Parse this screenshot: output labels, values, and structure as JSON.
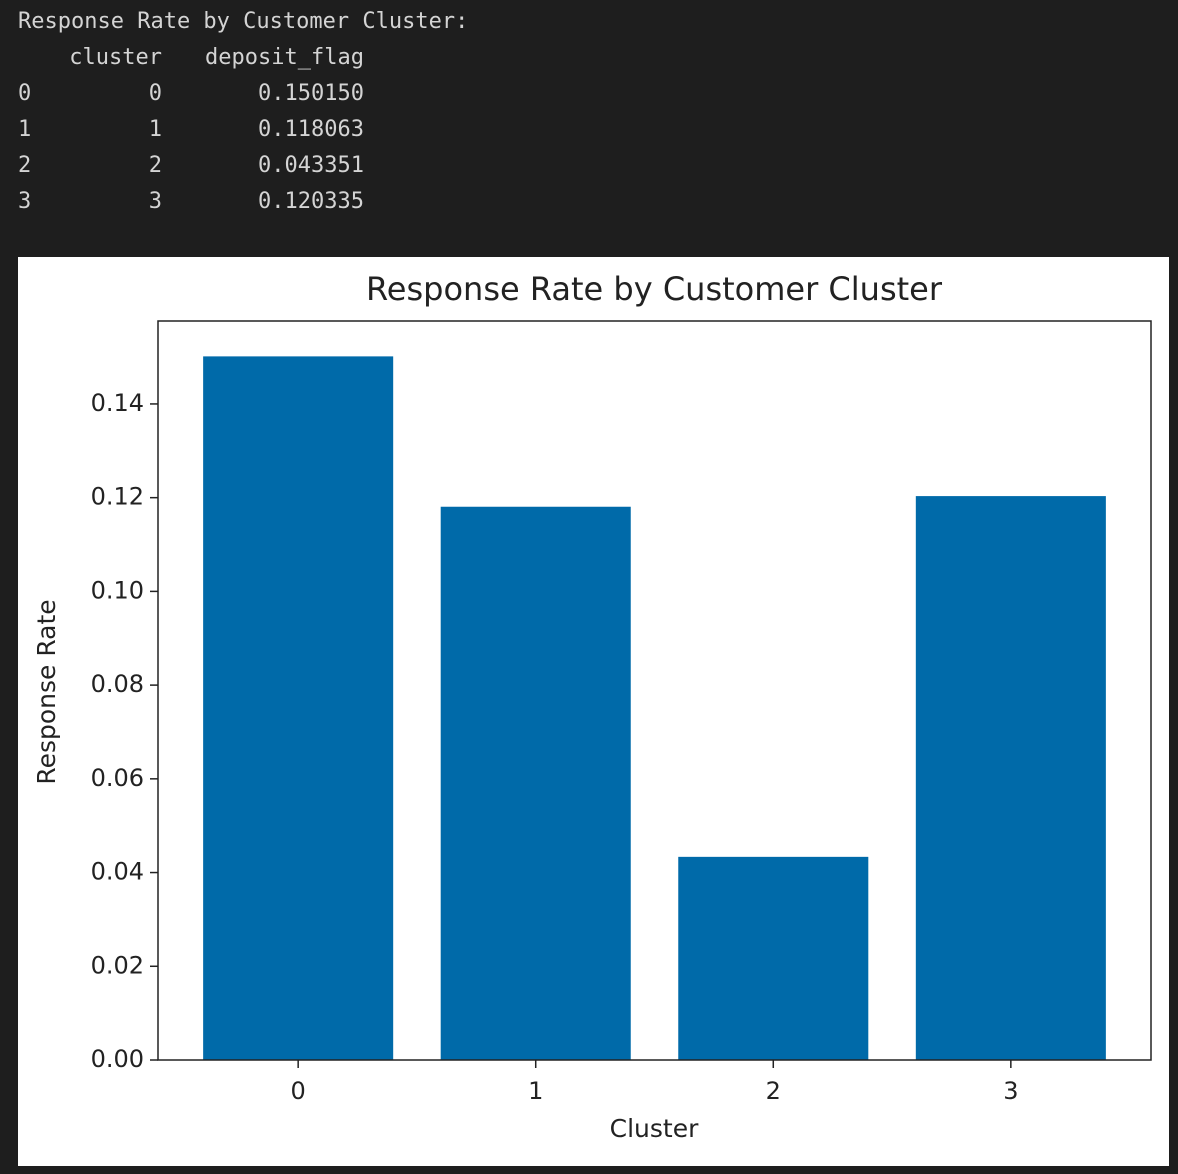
{
  "output": {
    "heading": "Response Rate by Customer Cluster:",
    "table": {
      "columns": [
        "cluster",
        "deposit_flag"
      ],
      "rows": [
        [
          "0",
          "0",
          "0.150150"
        ],
        [
          "1",
          "1",
          "0.118063"
        ],
        [
          "2",
          "2",
          "0.043351"
        ],
        [
          "3",
          "3",
          "0.120335"
        ]
      ]
    }
  },
  "chart_data": {
    "type": "bar",
    "title": "Response Rate by Customer Cluster",
    "x_label": "Cluster",
    "y_label": "Response Rate",
    "categories": [
      "0",
      "1",
      "2",
      "3"
    ],
    "values": [
      0.15015,
      0.118063,
      0.043351,
      0.120335
    ],
    "color": "#006aa9",
    "ylim": [
      0,
      0.1577
    ],
    "yticks": [
      {
        "value": 0,
        "label": "0.00"
      },
      0.02,
      0.04,
      0.06,
      0.08,
      {
        "value": 0.1,
        "label": "0.10"
      },
      0.12,
      0.14
    ],
    "grid": false
  }
}
